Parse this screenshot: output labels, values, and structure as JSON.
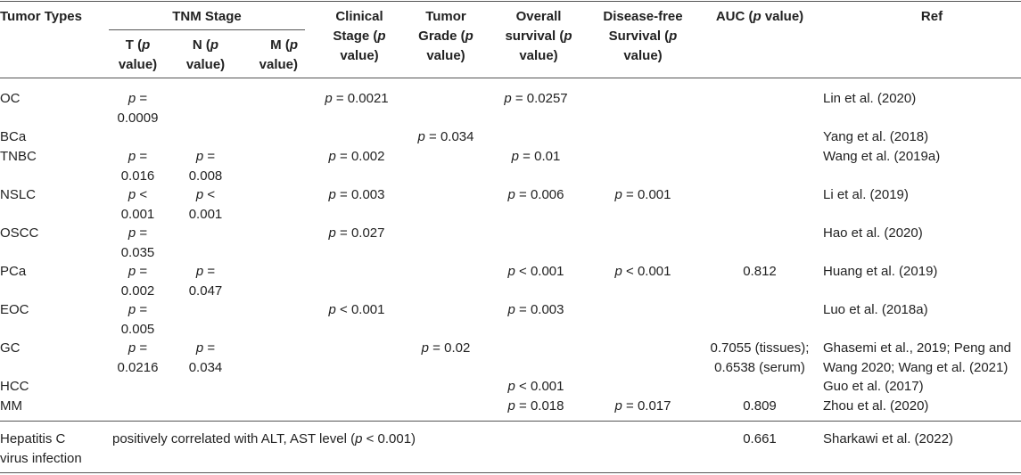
{
  "header": {
    "tumor_types": "Tumor Types",
    "tnm_stage": "TNM Stage",
    "t_label": "T (",
    "n_label": "N (",
    "m_label": "M (",
    "p": "p",
    "value_close": "value)",
    "clinical_stage_1": "Clinical",
    "clinical_stage_2": "Stage (",
    "tumor_grade_1": "Tumor",
    "tumor_grade_2": "Grade (",
    "overall_survival_1": "Overall",
    "overall_survival_2": "survival (",
    "disease_free_1": "Disease-free",
    "disease_free_2": "Survival (",
    "auc": "AUC (",
    "auc_tail": " value)",
    "ref": "Ref"
  },
  "rows": [
    {
      "type": "OC",
      "t": [
        "p =",
        "0.0009"
      ],
      "n": [
        "",
        ""
      ],
      "clinical": "p = 0.0021",
      "grade": "",
      "os": "p = 0.0257",
      "dfs": "",
      "auc": [
        "",
        ""
      ],
      "ref": [
        "Lin et al. (2020)"
      ]
    },
    {
      "type": "BCa",
      "t": [
        "",
        ""
      ],
      "n": [
        "",
        ""
      ],
      "clinical": "",
      "grade": "p = 0.034",
      "os": "",
      "dfs": "",
      "auc": [
        "",
        ""
      ],
      "ref": [
        "Yang et al. (2018)"
      ]
    },
    {
      "type": "TNBC",
      "t": [
        "p =",
        "0.016"
      ],
      "n": [
        "p =",
        "0.008"
      ],
      "clinical": "p = 0.002",
      "grade": "",
      "os": "p = 0.01",
      "dfs": "",
      "auc": [
        "",
        ""
      ],
      "ref": [
        "Wang et al. (2019a)"
      ]
    },
    {
      "type": "NSLC",
      "t": [
        "p <",
        "0.001"
      ],
      "n": [
        "p <",
        "0.001"
      ],
      "clinical": "p = 0.003",
      "grade": "",
      "os": "p = 0.006",
      "dfs": "p = 0.001",
      "auc": [
        "",
        ""
      ],
      "ref": [
        "Li et al. (2019)"
      ]
    },
    {
      "type": "OSCC",
      "t": [
        "p =",
        "0.035"
      ],
      "n": [
        "",
        ""
      ],
      "clinical": "p = 0.027",
      "grade": "",
      "os": "",
      "dfs": "",
      "auc": [
        "",
        ""
      ],
      "ref": [
        "Hao et al. (2020)"
      ]
    },
    {
      "type": "PCa",
      "t": [
        "p =",
        "0.002"
      ],
      "n": [
        "p =",
        "0.047"
      ],
      "clinical": "",
      "grade": "",
      "os": "p < 0.001",
      "dfs": "p < 0.001",
      "auc": [
        "0.812",
        ""
      ],
      "ref": [
        "Huang et al. (2019)"
      ]
    },
    {
      "type": "EOC",
      "t": [
        "p =",
        "0.005"
      ],
      "n": [
        "",
        ""
      ],
      "clinical": "p < 0.001",
      "grade": "",
      "os": "p = 0.003",
      "dfs": "",
      "auc": [
        "",
        ""
      ],
      "ref": [
        "Luo et al. (2018a)"
      ]
    },
    {
      "type": "GC",
      "t": [
        "p =",
        "0.0216"
      ],
      "n": [
        "p =",
        "0.034"
      ],
      "clinical": "",
      "grade": "p = 0.02",
      "os": "",
      "dfs": "",
      "auc": [
        "0.7055 (tissues);",
        "0.6538 (serum)"
      ],
      "ref": [
        "Ghasemi et al., 2019; Peng and",
        "Wang 2020; Wang et al. (2021)"
      ]
    },
    {
      "type": "HCC",
      "t": [
        "",
        ""
      ],
      "n": [
        "",
        ""
      ],
      "clinical": "",
      "grade": "",
      "os": "p < 0.001",
      "dfs": "",
      "auc": [
        "",
        ""
      ],
      "ref": [
        "Guo et al. (2017)"
      ]
    },
    {
      "type": "MM",
      "t": [
        "",
        ""
      ],
      "n": [
        "",
        ""
      ],
      "clinical": "",
      "grade": "",
      "os": "p = 0.018",
      "dfs": "p = 0.017",
      "auc": [
        "0.809",
        ""
      ],
      "ref": [
        "Zhou et al. (2020)"
      ]
    }
  ],
  "last_row": {
    "type_1": "Hepatitis C",
    "type_2": "virus infection",
    "desc_pre": "positively correlated with ALT, AST level (",
    "desc_p": "p",
    "desc_post": " < 0.001)",
    "auc": "0.661",
    "ref": "Sharkawi et al. (2022)"
  }
}
